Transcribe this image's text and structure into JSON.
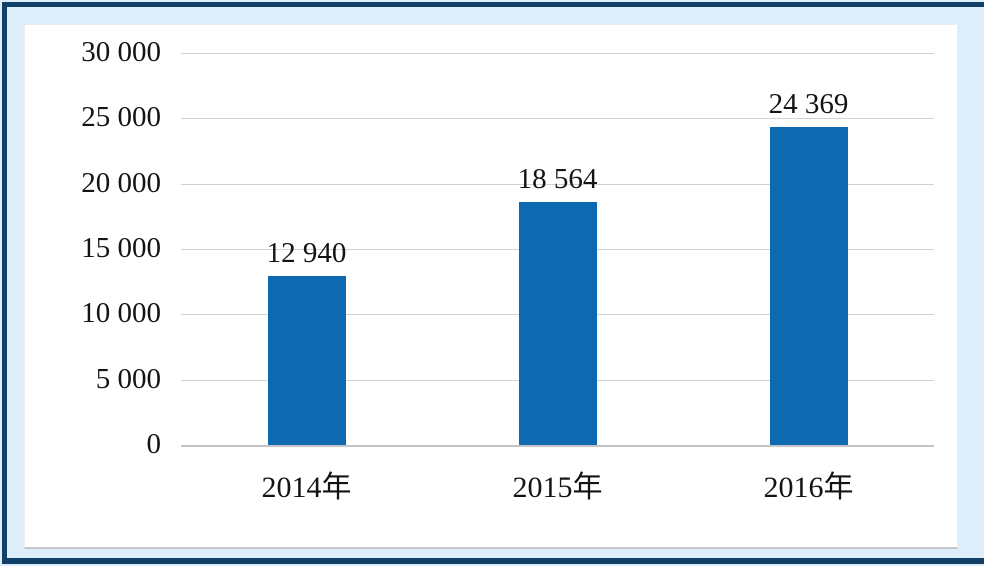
{
  "chart_data": {
    "type": "bar",
    "title": "",
    "xlabel": "",
    "ylabel": "",
    "categories": [
      "2014年",
      "2015年",
      "2016年"
    ],
    "values": [
      12940,
      18564,
      24369
    ],
    "value_labels": [
      "12 940",
      "18 564",
      "24 369"
    ],
    "y_ticks": [
      {
        "value": 30000,
        "label": "30 000"
      },
      {
        "value": 25000,
        "label": "25 000"
      },
      {
        "value": 20000,
        "label": "20 000"
      },
      {
        "value": 15000,
        "label": "15 000"
      },
      {
        "value": 10000,
        "label": "10 000"
      },
      {
        "value": 5000,
        "label": "5 000"
      },
      {
        "value": 0,
        "label": "0"
      }
    ],
    "ylim": [
      0,
      30000
    ],
    "grid": true,
    "legend": false
  },
  "colors": {
    "bar": "#0d69b0",
    "frame_border": "#123f68",
    "canvas_background": "#ddeefa",
    "plot_background": "#ffffff",
    "gridline": "#d2d2d5",
    "text": "#141414"
  }
}
